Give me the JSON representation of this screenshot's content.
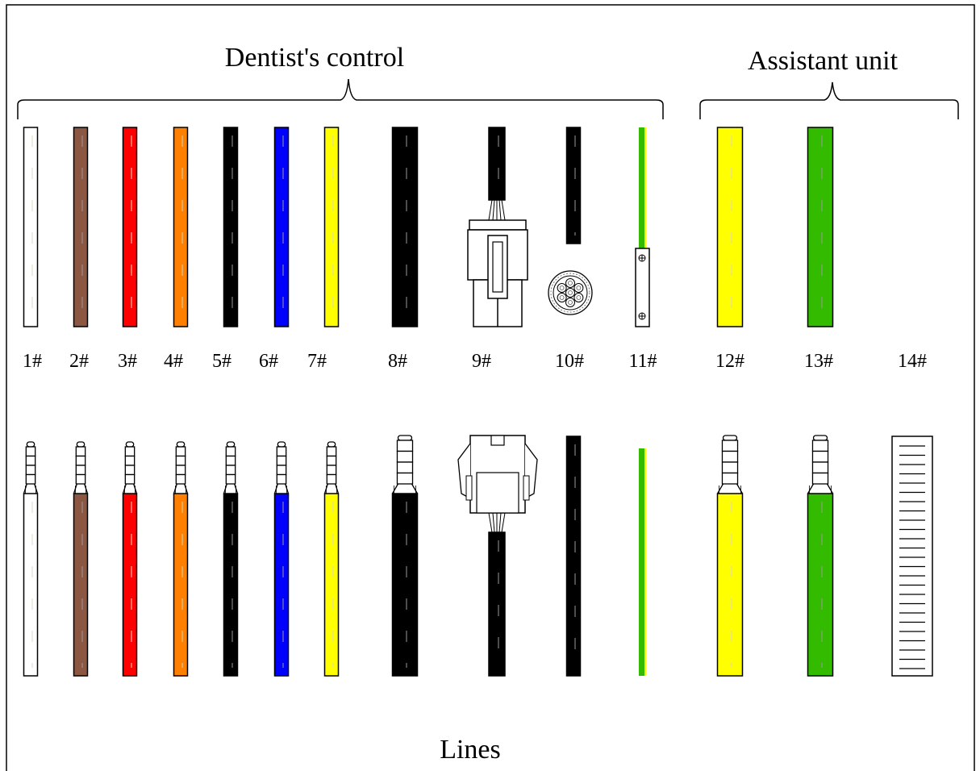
{
  "groups": {
    "dentist": {
      "label": "Dentist's control"
    },
    "assistant": {
      "label": "Assistant unit"
    }
  },
  "footer": {
    "label": "Lines"
  },
  "colors": {
    "white": "#ffffff",
    "brown": "#8b5742",
    "red": "#ff0000",
    "orange": "#ff7f00",
    "black": "#000000",
    "blue": "#0000ff",
    "yellow": "#ffff00",
    "green": "#33bb00"
  },
  "lines": [
    {
      "id": "1",
      "label": "1#",
      "color": "white",
      "type": "wire"
    },
    {
      "id": "2",
      "label": "2#",
      "color": "brown",
      "type": "wire"
    },
    {
      "id": "3",
      "label": "3#",
      "color": "red",
      "type": "wire"
    },
    {
      "id": "4",
      "label": "4#",
      "color": "orange",
      "type": "wire"
    },
    {
      "id": "5",
      "label": "5#",
      "color": "black",
      "type": "wire"
    },
    {
      "id": "6",
      "label": "6#",
      "color": "blue",
      "type": "wire"
    },
    {
      "id": "7",
      "label": "7#",
      "color": "yellow",
      "type": "wire"
    },
    {
      "id": "8",
      "label": "8#",
      "color": "black",
      "type": "thick-wire"
    },
    {
      "id": "9",
      "label": "9#",
      "color": "black",
      "type": "connector-cable"
    },
    {
      "id": "10",
      "label": "10#",
      "color": "black",
      "type": "multi-core-cable"
    },
    {
      "id": "11",
      "label": "11#",
      "color": "green",
      "type": "ground-wire"
    },
    {
      "id": "12",
      "label": "12#",
      "color": "yellow",
      "type": "thick-wire"
    },
    {
      "id": "13",
      "label": "13#",
      "color": "green",
      "type": "thick-wire"
    },
    {
      "id": "14",
      "label": "14#",
      "color": "white",
      "type": "ribbon"
    }
  ]
}
